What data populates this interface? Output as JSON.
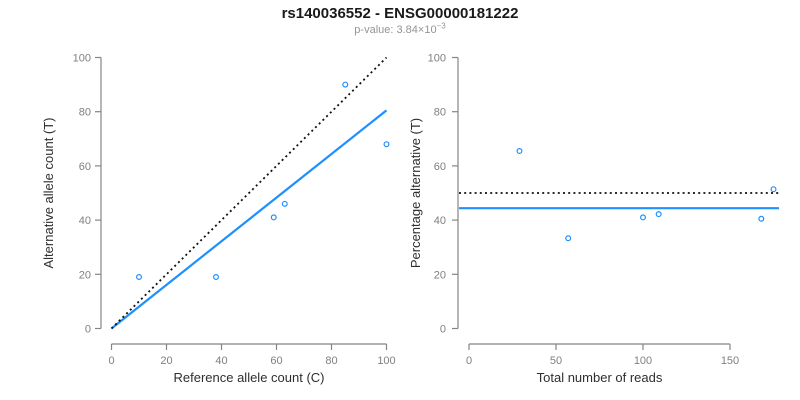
{
  "header": {
    "title": "rs140036552 - ENSG00000181222",
    "subtitle_base": "p-value: 3.84×10",
    "subtitle_exponent": "−3"
  },
  "colors": {
    "point_blue": "#1E90FF",
    "fit_line_blue": "#1E90FF",
    "reference_black": "#111111",
    "axis_gray": "#858585",
    "tick_label_gray": "#7f7f7f",
    "axis_title_dark": "#2e2e2e",
    "subtitle_gray": "#949494"
  },
  "chart_data": [
    {
      "type": "scatter",
      "name": "allele-counts",
      "xlabel": "Reference allele count (C)",
      "ylabel": "Alternative allele count (T)",
      "xlim": [
        0,
        100
      ],
      "ylim": [
        0,
        100
      ],
      "xticks": [
        0,
        20,
        40,
        60,
        80,
        100
      ],
      "yticks": [
        0,
        20,
        40,
        60,
        80,
        100
      ],
      "grid": false,
      "legend": "none",
      "points": [
        [
          10,
          19
        ],
        [
          38,
          19
        ],
        [
          59,
          41
        ],
        [
          63,
          46
        ],
        [
          85,
          90
        ],
        [
          100,
          68
        ]
      ],
      "lines": [
        {
          "kind": "segment",
          "from": [
            0,
            0
          ],
          "to": [
            100,
            80.5
          ],
          "style": "solid",
          "color": "#1E90FF",
          "label": "fitted-ratio-line"
        },
        {
          "kind": "segment",
          "from": [
            0,
            0
          ],
          "to": [
            100,
            100
          ],
          "style": "dotted",
          "color": "#111111",
          "label": "identity-line"
        }
      ]
    },
    {
      "type": "scatter",
      "name": "percentage-vs-depth",
      "xlabel": "Total number of reads",
      "ylabel": "Percentage alternative (T)",
      "xlim": [
        0,
        150
      ],
      "ylim": [
        0,
        100
      ],
      "xticks": [
        0,
        50,
        100,
        150
      ],
      "yticks": [
        0,
        20,
        40,
        60,
        80,
        100
      ],
      "grid": false,
      "legend": "none",
      "points": [
        [
          29,
          65.5
        ],
        [
          57,
          33.3
        ],
        [
          100,
          41
        ],
        [
          109,
          42.2
        ],
        [
          168,
          40.5
        ],
        [
          175,
          51.4
        ]
      ],
      "lines": [
        {
          "kind": "hline",
          "y": 44.4,
          "style": "solid",
          "color": "#1E90FF",
          "label": "mean-percentage-line"
        },
        {
          "kind": "hline",
          "y": 50,
          "style": "dotted",
          "color": "#111111",
          "label": "expected-50-percent-line"
        }
      ]
    }
  ]
}
